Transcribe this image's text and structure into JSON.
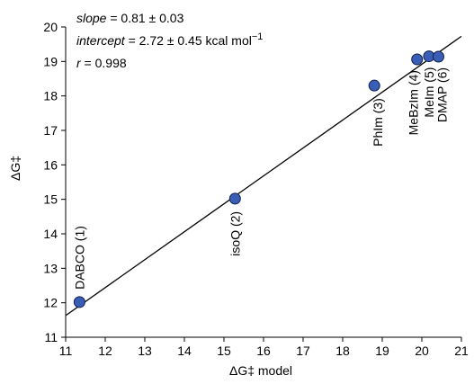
{
  "chart_data": {
    "type": "scatter",
    "ylabel": "ΔG‡",
    "xlabel": "ΔG‡ model",
    "xlim": [
      11,
      21
    ],
    "ylim": [
      11,
      20
    ],
    "xticks": [
      11,
      12,
      13,
      14,
      15,
      16,
      17,
      18,
      19,
      20,
      21
    ],
    "yticks": [
      11,
      12,
      13,
      14,
      15,
      16,
      17,
      18,
      19,
      20
    ],
    "grid": false,
    "marker_color": "#3a5eb5",
    "points": [
      {
        "label": "DABCO (1)",
        "x": 11.35,
        "y": 12.02
      },
      {
        "label": "isoQ (2)",
        "x": 15.28,
        "y": 15.02
      },
      {
        "label": "PhIm (3)",
        "x": 18.8,
        "y": 18.3
      },
      {
        "label": "MeBzIm (4)",
        "x": 19.88,
        "y": 19.06
      },
      {
        "label": "MeIm (5)",
        "x": 20.18,
        "y": 19.15
      },
      {
        "label": "DMAP (6)",
        "x": 20.42,
        "y": 19.14
      }
    ],
    "fit": {
      "slope": 0.81,
      "intercept": 2.72
    },
    "annotations": {
      "line1_label": "slope",
      "line1_value": " = 0.81 ± 0.03",
      "line2_label": "intercept",
      "line2_value": " = 2.72 ± 0.45 kcal mol",
      "line2_exp": "−1",
      "line3_label": "r",
      "line3_value": " = 0.998"
    }
  }
}
